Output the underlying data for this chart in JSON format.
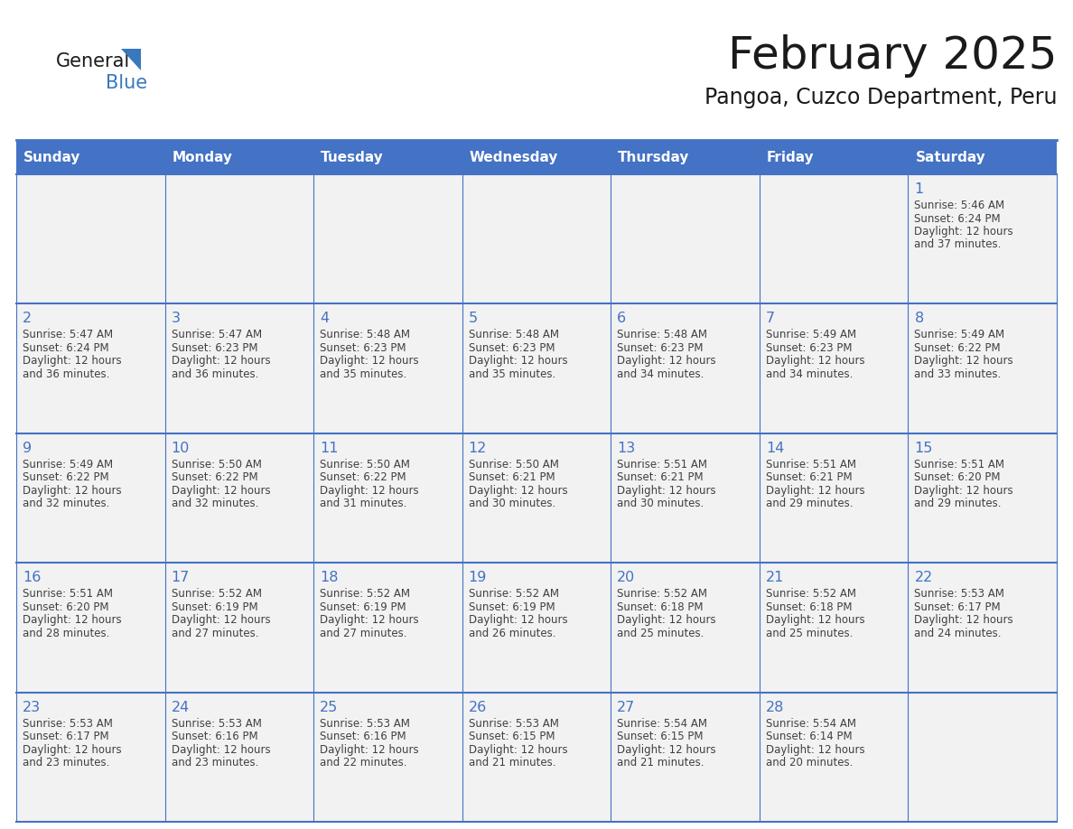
{
  "title": "February 2025",
  "subtitle": "Pangoa, Cuzco Department, Peru",
  "days_of_week": [
    "Sunday",
    "Monday",
    "Tuesday",
    "Wednesday",
    "Thursday",
    "Friday",
    "Saturday"
  ],
  "header_bg": "#4472C4",
  "header_text_color": "#FFFFFF",
  "cell_bg": "#F2F2F2",
  "cell_bg_white": "#FFFFFF",
  "cell_border_color": "#4472C4",
  "day_number_color": "#4472C4",
  "info_text_color": "#404040",
  "title_color": "#1a1a1a",
  "subtitle_color": "#1a1a1a",
  "logo_general_color": "#1a1a1a",
  "logo_blue_color": "#3878BE",
  "calendar_data": [
    [
      {
        "day": null,
        "sunrise": null,
        "sunset": null,
        "daylight": null
      },
      {
        "day": null,
        "sunrise": null,
        "sunset": null,
        "daylight": null
      },
      {
        "day": null,
        "sunrise": null,
        "sunset": null,
        "daylight": null
      },
      {
        "day": null,
        "sunrise": null,
        "sunset": null,
        "daylight": null
      },
      {
        "day": null,
        "sunrise": null,
        "sunset": null,
        "daylight": null
      },
      {
        "day": null,
        "sunrise": null,
        "sunset": null,
        "daylight": null
      },
      {
        "day": 1,
        "sunrise": "5:46 AM",
        "sunset": "6:24 PM",
        "daylight": "12 hours\nand 37 minutes."
      }
    ],
    [
      {
        "day": 2,
        "sunrise": "5:47 AM",
        "sunset": "6:24 PM",
        "daylight": "12 hours\nand 36 minutes."
      },
      {
        "day": 3,
        "sunrise": "5:47 AM",
        "sunset": "6:23 PM",
        "daylight": "12 hours\nand 36 minutes."
      },
      {
        "day": 4,
        "sunrise": "5:48 AM",
        "sunset": "6:23 PM",
        "daylight": "12 hours\nand 35 minutes."
      },
      {
        "day": 5,
        "sunrise": "5:48 AM",
        "sunset": "6:23 PM",
        "daylight": "12 hours\nand 35 minutes."
      },
      {
        "day": 6,
        "sunrise": "5:48 AM",
        "sunset": "6:23 PM",
        "daylight": "12 hours\nand 34 minutes."
      },
      {
        "day": 7,
        "sunrise": "5:49 AM",
        "sunset": "6:23 PM",
        "daylight": "12 hours\nand 34 minutes."
      },
      {
        "day": 8,
        "sunrise": "5:49 AM",
        "sunset": "6:22 PM",
        "daylight": "12 hours\nand 33 minutes."
      }
    ],
    [
      {
        "day": 9,
        "sunrise": "5:49 AM",
        "sunset": "6:22 PM",
        "daylight": "12 hours\nand 32 minutes."
      },
      {
        "day": 10,
        "sunrise": "5:50 AM",
        "sunset": "6:22 PM",
        "daylight": "12 hours\nand 32 minutes."
      },
      {
        "day": 11,
        "sunrise": "5:50 AM",
        "sunset": "6:22 PM",
        "daylight": "12 hours\nand 31 minutes."
      },
      {
        "day": 12,
        "sunrise": "5:50 AM",
        "sunset": "6:21 PM",
        "daylight": "12 hours\nand 30 minutes."
      },
      {
        "day": 13,
        "sunrise": "5:51 AM",
        "sunset": "6:21 PM",
        "daylight": "12 hours\nand 30 minutes."
      },
      {
        "day": 14,
        "sunrise": "5:51 AM",
        "sunset": "6:21 PM",
        "daylight": "12 hours\nand 29 minutes."
      },
      {
        "day": 15,
        "sunrise": "5:51 AM",
        "sunset": "6:20 PM",
        "daylight": "12 hours\nand 29 minutes."
      }
    ],
    [
      {
        "day": 16,
        "sunrise": "5:51 AM",
        "sunset": "6:20 PM",
        "daylight": "12 hours\nand 28 minutes."
      },
      {
        "day": 17,
        "sunrise": "5:52 AM",
        "sunset": "6:19 PM",
        "daylight": "12 hours\nand 27 minutes."
      },
      {
        "day": 18,
        "sunrise": "5:52 AM",
        "sunset": "6:19 PM",
        "daylight": "12 hours\nand 27 minutes."
      },
      {
        "day": 19,
        "sunrise": "5:52 AM",
        "sunset": "6:19 PM",
        "daylight": "12 hours\nand 26 minutes."
      },
      {
        "day": 20,
        "sunrise": "5:52 AM",
        "sunset": "6:18 PM",
        "daylight": "12 hours\nand 25 minutes."
      },
      {
        "day": 21,
        "sunrise": "5:52 AM",
        "sunset": "6:18 PM",
        "daylight": "12 hours\nand 25 minutes."
      },
      {
        "day": 22,
        "sunrise": "5:53 AM",
        "sunset": "6:17 PM",
        "daylight": "12 hours\nand 24 minutes."
      }
    ],
    [
      {
        "day": 23,
        "sunrise": "5:53 AM",
        "sunset": "6:17 PM",
        "daylight": "12 hours\nand 23 minutes."
      },
      {
        "day": 24,
        "sunrise": "5:53 AM",
        "sunset": "6:16 PM",
        "daylight": "12 hours\nand 23 minutes."
      },
      {
        "day": 25,
        "sunrise": "5:53 AM",
        "sunset": "6:16 PM",
        "daylight": "12 hours\nand 22 minutes."
      },
      {
        "day": 26,
        "sunrise": "5:53 AM",
        "sunset": "6:15 PM",
        "daylight": "12 hours\nand 21 minutes."
      },
      {
        "day": 27,
        "sunrise": "5:54 AM",
        "sunset": "6:15 PM",
        "daylight": "12 hours\nand 21 minutes."
      },
      {
        "day": 28,
        "sunrise": "5:54 AM",
        "sunset": "6:14 PM",
        "daylight": "12 hours\nand 20 minutes."
      },
      {
        "day": null,
        "sunrise": null,
        "sunset": null,
        "daylight": null
      }
    ]
  ]
}
